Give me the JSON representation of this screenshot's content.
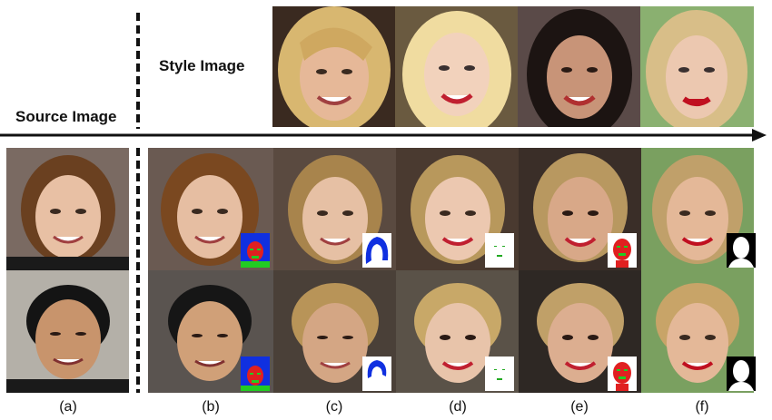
{
  "labels": {
    "style_image": "Style Image",
    "source_image": "Source Image"
  },
  "captions": [
    "(a)",
    "(b)",
    "(c)",
    "(d)",
    "(e)",
    "(f)"
  ],
  "colors": {
    "arrow": "#111111",
    "mask_red": "#e02020",
    "mask_green": "#22cc22",
    "mask_blue": "#1030e0"
  }
}
